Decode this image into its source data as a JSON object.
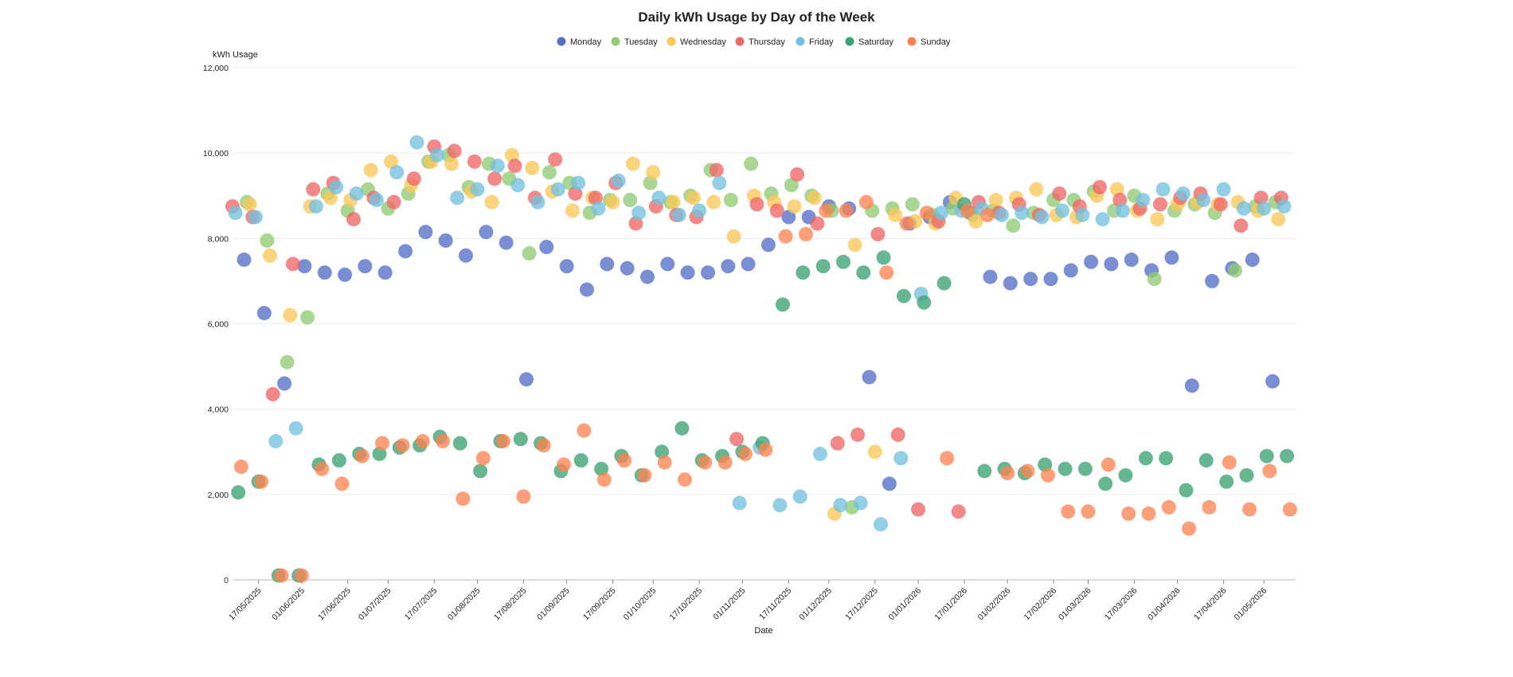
{
  "chart_data": {
    "type": "scatter",
    "title": "Daily kWh Usage by Day of the Week",
    "xlabel": "Date",
    "ylabel": "kWh Usage",
    "xlim": [
      "2025-05-08",
      "2026-05-12"
    ],
    "ylim": [
      0,
      12000
    ],
    "y_ticks": [
      0,
      2000,
      4000,
      6000,
      8000,
      10000,
      12000
    ],
    "y_tick_labels": [
      "0",
      "2,000",
      "4,000",
      "6,000",
      "8,000",
      "10,000",
      "12,000"
    ],
    "x_ticks": [
      "2025-05-17",
      "2025-06-01",
      "2025-06-17",
      "2025-07-01",
      "2025-07-17",
      "2025-08-01",
      "2025-08-17",
      "2025-09-01",
      "2025-09-17",
      "2025-10-01",
      "2025-10-17",
      "2025-11-01",
      "2025-11-17",
      "2025-12-01",
      "2025-12-17",
      "2026-01-01",
      "2026-01-17",
      "2026-02-01",
      "2026-02-17",
      "2026-03-01",
      "2026-03-17",
      "2026-04-01",
      "2026-04-17",
      "2026-05-01"
    ],
    "x_tick_labels": [
      "17/05/2025",
      "01/06/2025",
      "17/06/2025",
      "01/07/2025",
      "17/07/2025",
      "01/08/2025",
      "17/08/2025",
      "01/09/2025",
      "17/09/2025",
      "01/10/2025",
      "17/10/2025",
      "01/11/2025",
      "17/11/2025",
      "01/12/2025",
      "17/12/2025",
      "01/01/2026",
      "17/01/2026",
      "01/02/2026",
      "17/02/2026",
      "01/03/2026",
      "17/03/2026",
      "01/04/2026",
      "17/04/2026",
      "01/05/2026"
    ],
    "grid": "horizontal",
    "legend_position": "top-center",
    "series": [
      {
        "name": "Monday",
        "color": "#5470c6",
        "x": [
          "2025-05-12",
          "2025-05-19",
          "2025-05-26",
          "2025-06-02",
          "2025-06-09",
          "2025-06-16",
          "2025-06-23",
          "2025-06-30",
          "2025-07-07",
          "2025-07-14",
          "2025-07-21",
          "2025-07-28",
          "2025-08-04",
          "2025-08-11",
          "2025-08-18",
          "2025-08-25",
          "2025-09-01",
          "2025-09-08",
          "2025-09-15",
          "2025-09-22",
          "2025-09-29",
          "2025-10-06",
          "2025-10-13",
          "2025-10-20",
          "2025-10-27",
          "2025-11-03",
          "2025-11-10",
          "2025-11-17",
          "2025-11-24",
          "2025-12-01",
          "2025-12-08",
          "2025-12-15",
          "2025-12-22",
          "2025-12-29",
          "2026-01-05",
          "2026-01-12",
          "2026-01-19",
          "2026-01-26",
          "2026-02-02",
          "2026-02-09",
          "2026-02-16",
          "2026-02-23",
          "2026-03-02",
          "2026-03-09",
          "2026-03-16",
          "2026-03-23",
          "2026-03-30",
          "2026-04-06",
          "2026-04-13",
          "2026-04-20",
          "2026-04-27",
          "2026-05-04"
        ],
        "y": [
          7500,
          6250,
          4600,
          7350,
          7200,
          7150,
          7350,
          7200,
          7700,
          8150,
          7950,
          7600,
          8150,
          7900,
          4700,
          7800,
          7350,
          6800,
          7400,
          7300,
          7100,
          7400,
          7200,
          7200,
          7350,
          7400,
          7850,
          8500,
          8500,
          8750,
          8700,
          4750,
          2250,
          8350,
          8500,
          8850,
          8600,
          7100,
          6950,
          7050,
          7050,
          7250,
          7450,
          7400,
          7500,
          7250,
          7550,
          4550,
          7000,
          7300,
          7500,
          4650
        ]
      },
      {
        "name": "Tuesday",
        "color": "#91cc75",
        "x": [
          "2025-05-13",
          "2025-05-20",
          "2025-05-27",
          "2025-06-03",
          "2025-06-10",
          "2025-06-17",
          "2025-06-24",
          "2025-07-01",
          "2025-07-08",
          "2025-07-15",
          "2025-07-22",
          "2025-07-29",
          "2025-08-05",
          "2025-08-12",
          "2025-08-19",
          "2025-08-26",
          "2025-09-02",
          "2025-09-09",
          "2025-09-16",
          "2025-09-23",
          "2025-09-30",
          "2025-10-07",
          "2025-10-14",
          "2025-10-21",
          "2025-10-28",
          "2025-11-04",
          "2025-11-11",
          "2025-11-18",
          "2025-11-25",
          "2025-12-02",
          "2025-12-09",
          "2025-12-16",
          "2025-12-23",
          "2025-12-30",
          "2026-01-06",
          "2026-01-13",
          "2026-01-20",
          "2026-01-27",
          "2026-02-03",
          "2026-02-10",
          "2026-02-17",
          "2026-02-24",
          "2026-03-03",
          "2026-03-10",
          "2026-03-17",
          "2026-03-24",
          "2026-03-31",
          "2026-04-07",
          "2026-04-14",
          "2026-04-21",
          "2026-04-28",
          "2026-05-05"
        ],
        "y": [
          8850,
          7950,
          5100,
          6150,
          9050,
          8650,
          9150,
          8700,
          9050,
          9800,
          9950,
          9200,
          9750,
          9400,
          7650,
          9550,
          9300,
          8600,
          8900,
          8900,
          9300,
          8850,
          9000,
          9600,
          8900,
          9750,
          9050,
          9250,
          9000,
          8650,
          1700,
          8650,
          8700,
          8800,
          8550,
          8700,
          8550,
          8650,
          8300,
          8600,
          8900,
          8900,
          9100,
          8650,
          9000,
          7050,
          8650,
          8800,
          8600,
          7250,
          8750,
          8850
        ]
      },
      {
        "name": "Wednesday",
        "color": "#fac858",
        "x": [
          "2025-05-14",
          "2025-05-21",
          "2025-05-28",
          "2025-06-04",
          "2025-06-11",
          "2025-06-18",
          "2025-06-25",
          "2025-07-02",
          "2025-07-09",
          "2025-07-16",
          "2025-07-23",
          "2025-07-30",
          "2025-08-06",
          "2025-08-13",
          "2025-08-20",
          "2025-08-27",
          "2025-09-03",
          "2025-09-10",
          "2025-09-17",
          "2025-09-24",
          "2025-10-01",
          "2025-10-08",
          "2025-10-15",
          "2025-10-22",
          "2025-10-29",
          "2025-11-05",
          "2025-11-12",
          "2025-11-19",
          "2025-11-26",
          "2025-12-03",
          "2025-12-10",
          "2025-12-17",
          "2025-12-24",
          "2025-12-31",
          "2026-01-07",
          "2026-01-14",
          "2026-01-21",
          "2026-01-28",
          "2026-02-04",
          "2026-02-11",
          "2026-02-18",
          "2026-02-25",
          "2026-03-04",
          "2026-03-11",
          "2026-03-18",
          "2026-03-25",
          "2026-04-01",
          "2026-04-08",
          "2026-04-15",
          "2026-04-22",
          "2026-04-29",
          "2026-05-06"
        ],
        "y": [
          8800,
          7600,
          6200,
          8750,
          8950,
          8900,
          9600,
          9800,
          9250,
          9800,
          9750,
          9100,
          8850,
          9950,
          9650,
          9100,
          8650,
          8950,
          8850,
          9750,
          9550,
          8850,
          8950,
          8850,
          8050,
          9000,
          8850,
          8750,
          8950,
          1550,
          7850,
          3000,
          8550,
          8400,
          8350,
          8950,
          8400,
          8900,
          8950,
          9150,
          8550,
          8500,
          9000,
          9150,
          8650,
          8450,
          8800,
          8850,
          8800,
          8850,
          8650,
          8450
        ]
      },
      {
        "name": "Thursday",
        "color": "#ee6666",
        "x": [
          "2025-05-08",
          "2025-05-15",
          "2025-05-22",
          "2025-05-29",
          "2025-06-05",
          "2025-06-12",
          "2025-06-19",
          "2025-06-26",
          "2025-07-03",
          "2025-07-10",
          "2025-07-17",
          "2025-07-24",
          "2025-07-31",
          "2025-08-07",
          "2025-08-14",
          "2025-08-21",
          "2025-08-28",
          "2025-09-04",
          "2025-09-11",
          "2025-09-18",
          "2025-09-25",
          "2025-10-02",
          "2025-10-09",
          "2025-10-16",
          "2025-10-23",
          "2025-10-30",
          "2025-11-06",
          "2025-11-13",
          "2025-11-20",
          "2025-11-27",
          "2025-12-04",
          "2025-12-11",
          "2025-12-18",
          "2025-12-25",
          "2026-01-01",
          "2026-01-08",
          "2026-01-15",
          "2026-01-22",
          "2026-01-29",
          "2026-02-05",
          "2026-02-12",
          "2026-02-19",
          "2026-02-26",
          "2026-03-05",
          "2026-03-12",
          "2026-03-19",
          "2026-03-26",
          "2026-04-02",
          "2026-04-09",
          "2026-04-16",
          "2026-04-23",
          "2026-04-30",
          "2026-05-07"
        ],
        "y": [
          8750,
          8500,
          4350,
          7400,
          9150,
          9300,
          8450,
          8950,
          8850,
          9400,
          10150,
          10050,
          9800,
          9400,
          9700,
          8950,
          9850,
          9050,
          8950,
          9300,
          8350,
          8750,
          8550,
          8500,
          9600,
          3300,
          8800,
          8650,
          9500,
          8350,
          3200,
          3400,
          8100,
          3400,
          1650,
          8400,
          1600,
          8850,
          8600,
          8800,
          8550,
          9050,
          8750,
          9200,
          8900,
          8700,
          8800,
          8950,
          9050,
          8800,
          8300,
          8950,
          8950
        ]
      },
      {
        "name": "Friday",
        "color": "#73c0de",
        "x": [
          "2025-05-09",
          "2025-05-16",
          "2025-05-23",
          "2025-05-30",
          "2025-06-06",
          "2025-06-13",
          "2025-06-20",
          "2025-06-27",
          "2025-07-04",
          "2025-07-11",
          "2025-07-18",
          "2025-07-25",
          "2025-08-01",
          "2025-08-08",
          "2025-08-15",
          "2025-08-22",
          "2025-08-29",
          "2025-09-05",
          "2025-09-12",
          "2025-09-19",
          "2025-09-26",
          "2025-10-03",
          "2025-10-10",
          "2025-10-17",
          "2025-10-24",
          "2025-10-31",
          "2025-11-07",
          "2025-11-14",
          "2025-11-21",
          "2025-11-28",
          "2025-12-05",
          "2025-12-12",
          "2025-12-19",
          "2025-12-26",
          "2026-01-02",
          "2026-01-09",
          "2026-01-16",
          "2026-01-23",
          "2026-01-30",
          "2026-02-06",
          "2026-02-13",
          "2026-02-20",
          "2026-02-27",
          "2026-03-06",
          "2026-03-13",
          "2026-03-20",
          "2026-03-27",
          "2026-04-03",
          "2026-04-10",
          "2026-04-17",
          "2026-04-24",
          "2026-05-01",
          "2026-05-08"
        ],
        "y": [
          8600,
          8500,
          3250,
          3550,
          8750,
          9200,
          9050,
          8900,
          9550,
          10250,
          9950,
          8950,
          9150,
          9700,
          9250,
          8850,
          9150,
          9300,
          8700,
          9350,
          8600,
          8950,
          8550,
          8650,
          9300,
          1800,
          3100,
          1750,
          1950,
          2950,
          1750,
          1800,
          1300,
          2850,
          6700,
          8600,
          8650,
          8700,
          8550,
          8600,
          8500,
          8650,
          8550,
          8450,
          8650,
          8900,
          9150,
          9050,
          8900,
          9150,
          8700,
          8700,
          8750
        ]
      },
      {
        "name": "Saturday",
        "color": "#3ba272",
        "x": [
          "2025-05-10",
          "2025-05-17",
          "2025-05-24",
          "2025-05-31",
          "2025-06-07",
          "2025-06-14",
          "2025-06-21",
          "2025-06-28",
          "2025-07-05",
          "2025-07-12",
          "2025-07-19",
          "2025-07-26",
          "2025-08-02",
          "2025-08-09",
          "2025-08-16",
          "2025-08-23",
          "2025-08-30",
          "2025-09-06",
          "2025-09-13",
          "2025-09-20",
          "2025-09-27",
          "2025-10-04",
          "2025-10-11",
          "2025-10-18",
          "2025-10-25",
          "2025-11-01",
          "2025-11-08",
          "2025-11-15",
          "2025-11-22",
          "2025-11-29",
          "2025-12-06",
          "2025-12-13",
          "2025-12-20",
          "2025-12-27",
          "2026-01-03",
          "2026-01-10",
          "2026-01-17",
          "2026-01-24",
          "2026-01-31",
          "2026-02-07",
          "2026-02-14",
          "2026-02-21",
          "2026-02-28",
          "2026-03-07",
          "2026-03-14",
          "2026-03-21",
          "2026-03-28",
          "2026-04-04",
          "2026-04-11",
          "2026-04-18",
          "2026-04-25",
          "2026-05-02",
          "2026-05-09"
        ],
        "y": [
          2050,
          2300,
          100,
          100,
          2700,
          2800,
          2950,
          2950,
          3100,
          3150,
          3350,
          3200,
          2550,
          3250,
          3300,
          3200,
          2550,
          2800,
          2600,
          2900,
          2450,
          3000,
          3550,
          2800,
          2900,
          3000,
          3200,
          6450,
          7200,
          7350,
          7450,
          7200,
          7550,
          6650,
          6500,
          6950,
          8800,
          2550,
          2600,
          2500,
          2700,
          2600,
          2600,
          2250,
          2450,
          2850,
          2850,
          2100,
          2800,
          2300,
          2450,
          2900,
          2900
        ]
      },
      {
        "name": "Sunday",
        "color": "#fc8452",
        "x": [
          "2025-05-11",
          "2025-05-18",
          "2025-05-25",
          "2025-06-01",
          "2025-06-08",
          "2025-06-15",
          "2025-06-22",
          "2025-06-29",
          "2025-07-06",
          "2025-07-13",
          "2025-07-20",
          "2025-07-27",
          "2025-08-03",
          "2025-08-10",
          "2025-08-17",
          "2025-08-24",
          "2025-08-31",
          "2025-09-07",
          "2025-09-14",
          "2025-09-21",
          "2025-09-28",
          "2025-10-05",
          "2025-10-12",
          "2025-10-19",
          "2025-10-26",
          "2025-11-02",
          "2025-11-09",
          "2025-11-16",
          "2025-11-23",
          "2025-11-30",
          "2025-12-07",
          "2025-12-14",
          "2025-12-21",
          "2025-12-28",
          "2026-01-04",
          "2026-01-11",
          "2026-01-18",
          "2026-01-25",
          "2026-02-01",
          "2026-02-08",
          "2026-02-15",
          "2026-02-22",
          "2026-03-01",
          "2026-03-08",
          "2026-03-15",
          "2026-03-22",
          "2026-03-29",
          "2026-04-05",
          "2026-04-12",
          "2026-04-19",
          "2026-04-26",
          "2026-05-03",
          "2026-05-10"
        ],
        "y": [
          2650,
          2300,
          100,
          100,
          2600,
          2250,
          2900,
          3200,
          3150,
          3250,
          3250,
          1900,
          2850,
          3250,
          1950,
          3150,
          2700,
          3500,
          2350,
          2800,
          2450,
          2750,
          2350,
          2750,
          2750,
          2950,
          3050,
          8050,
          8100,
          8650,
          8650,
          8850,
          7200,
          8350,
          8600,
          2850,
          8650,
          8550,
          2500,
          2550,
          2450,
          1600,
          1600,
          2700,
          1550,
          1550,
          1700,
          1200,
          1700,
          2750,
          1650,
          2550,
          1650
        ]
      }
    ]
  }
}
